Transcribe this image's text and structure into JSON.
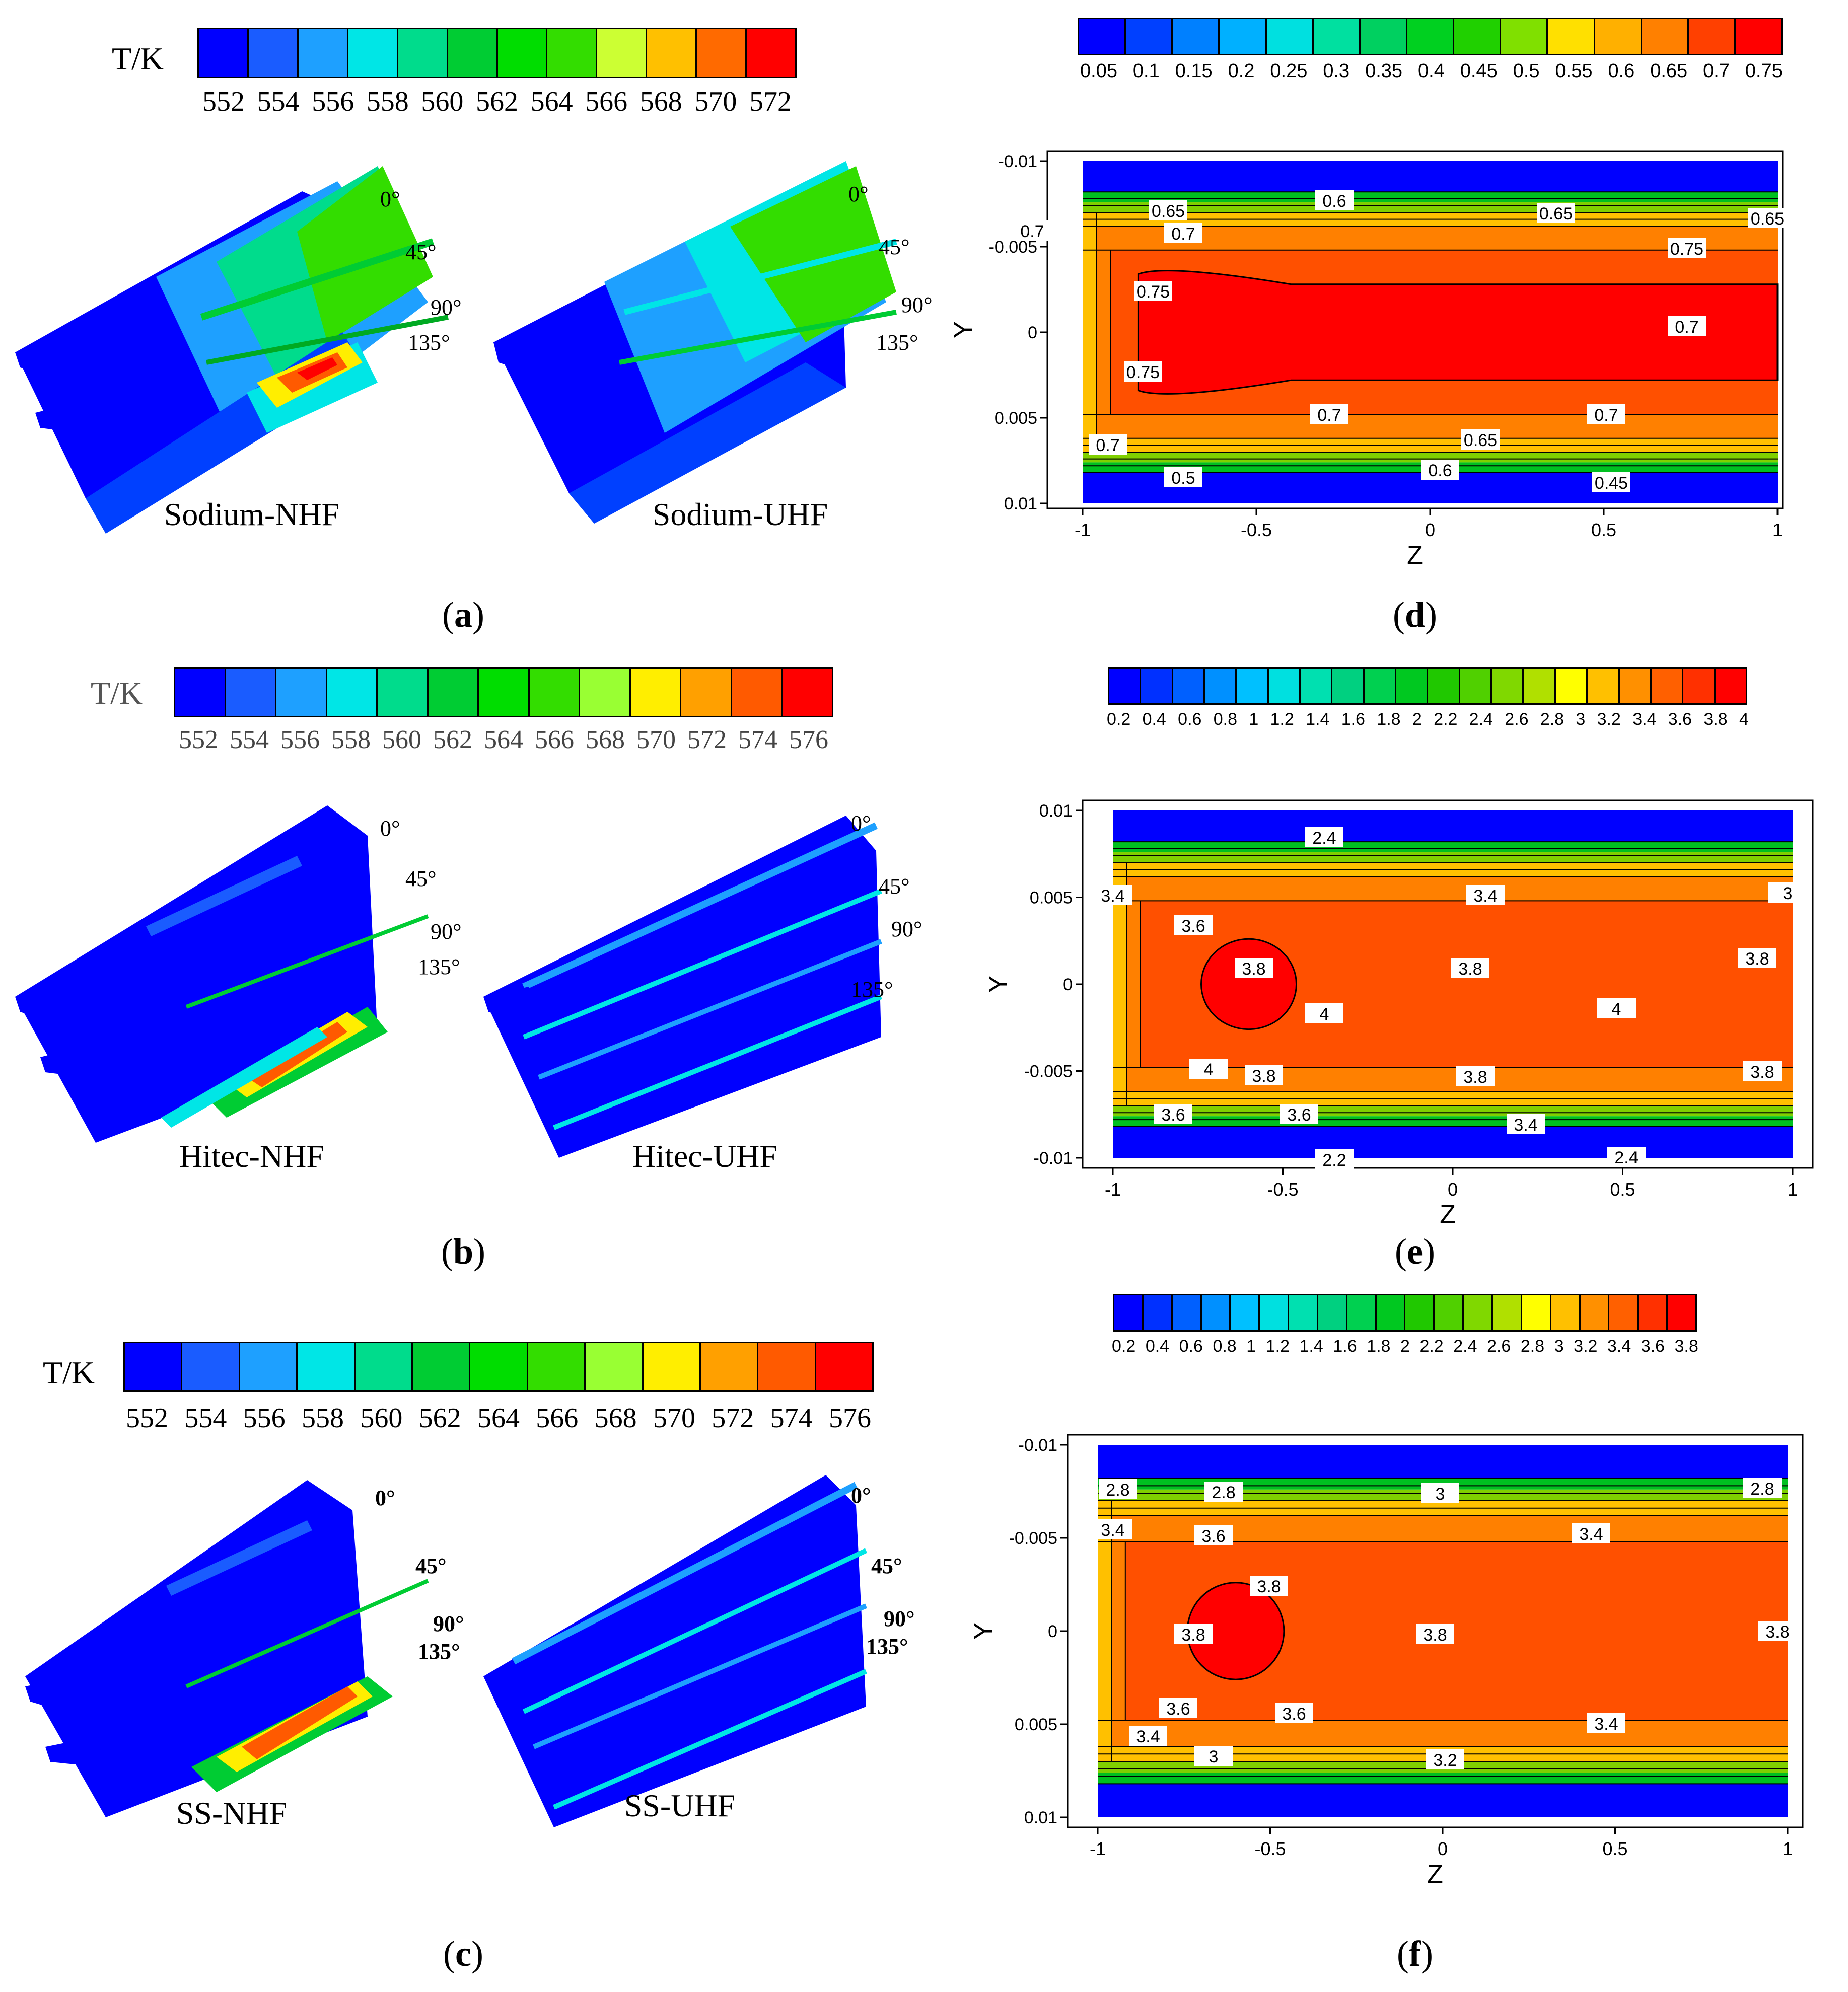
{
  "panels": {
    "a": {
      "label": "a",
      "unit": "T/K",
      "ticks": [
        "552",
        "554",
        "556",
        "558",
        "560",
        "562",
        "564",
        "566",
        "568",
        "570",
        "572"
      ],
      "colors": [
        "#0000ff",
        "#1a5cff",
        "#1ea0ff",
        "#00e6e6",
        "#00dc8c",
        "#00cc33",
        "#00dd00",
        "#33dd00",
        "#ccff33",
        "#ffc000",
        "#ff6a00",
        "#ff0000"
      ],
      "captions": [
        "Sodium-NHF",
        "Sodium-UHF"
      ],
      "angles": [
        "0°",
        "45°",
        "90°",
        "135°"
      ]
    },
    "b": {
      "label": "b",
      "unit": "T/K",
      "ticks": [
        "552",
        "554",
        "556",
        "558",
        "560",
        "562",
        "564",
        "566",
        "568",
        "570",
        "572",
        "574",
        "576"
      ],
      "colors": [
        "#0000ff",
        "#1a5cff",
        "#1ea0ff",
        "#00e6e6",
        "#00dc8c",
        "#00cc33",
        "#00dd00",
        "#33dd00",
        "#99ff33",
        "#ffee00",
        "#ffa000",
        "#ff5a00",
        "#ff0000"
      ],
      "captions": [
        "Hitec-NHF",
        "Hitec-UHF"
      ],
      "angles": [
        "0°",
        "45°",
        "90°",
        "135°"
      ]
    },
    "c": {
      "label": "c",
      "unit": "T/K",
      "ticks": [
        "552",
        "554",
        "556",
        "558",
        "560",
        "562",
        "564",
        "566",
        "568",
        "570",
        "572",
        "574",
        "576"
      ],
      "colors": [
        "#0000ff",
        "#1a5cff",
        "#1ea0ff",
        "#00e6e6",
        "#00dc8c",
        "#00cc33",
        "#00dd00",
        "#33dd00",
        "#99ff33",
        "#ffee00",
        "#ffa000",
        "#ff5a00",
        "#ff0000"
      ],
      "captions": [
        "SS-NHF",
        "SS-UHF"
      ],
      "angles": [
        "0°",
        "45°",
        "90°",
        "135°"
      ]
    },
    "d": {
      "label": "d",
      "ticks": [
        "0.05",
        "0.1",
        "0.15",
        "0.2",
        "0.25",
        "0.3",
        "0.35",
        "0.4",
        "0.45",
        "0.5",
        "0.55",
        "0.6",
        "0.65",
        "0.7",
        "0.75"
      ],
      "colors": [
        "#0000ff",
        "#0040ff",
        "#0080ff",
        "#00b0ff",
        "#00e0e0",
        "#00e0a0",
        "#00d060",
        "#00d020",
        "#20d000",
        "#80e000",
        "#ffe000",
        "#ffb000",
        "#ff8000",
        "#ff4000",
        "#ff0000"
      ],
      "chart_data": {
        "type": "heatmap",
        "xlabel": "Z",
        "ylabel": "Y",
        "xlim": [
          -1,
          1
        ],
        "ylim": [
          -0.01,
          0.01
        ],
        "y_inverted": true,
        "xticks": [
          "-1",
          "-0.5",
          "0",
          "0.5",
          "1"
        ],
        "yticks": [
          "-0.01",
          "-0.005",
          "0",
          "0.005",
          "0.01"
        ],
        "contour_labels": [
          "0.65",
          "0.6",
          "0.65",
          "0.65",
          "0.7",
          "0.7",
          "0.75",
          "0.75",
          "0.7",
          "0.75",
          "0.7",
          "0.7",
          "0.65",
          "0.7",
          "0.5",
          "0.6",
          "0.45"
        ]
      }
    },
    "e": {
      "label": "e",
      "ticks": [
        "0.2",
        "0.4",
        "0.6",
        "0.8",
        "1",
        "1.2",
        "1.4",
        "1.6",
        "1.8",
        "2",
        "2.2",
        "2.4",
        "2.6",
        "2.8",
        "3",
        "3.2",
        "3.4",
        "3.6",
        "3.8",
        "4"
      ],
      "colors": [
        "#0000ff",
        "#0030ff",
        "#0060ff",
        "#0090ff",
        "#00c0ff",
        "#00e0e0",
        "#00e0b0",
        "#00d080",
        "#00d050",
        "#00c820",
        "#20c800",
        "#50d000",
        "#80d800",
        "#b0e000",
        "#ffff00",
        "#ffc000",
        "#ff9000",
        "#ff6000",
        "#ff3000",
        "#ff0000"
      ],
      "chart_data": {
        "type": "heatmap",
        "xlabel": "Z",
        "ylabel": "Y",
        "xlim": [
          -1,
          1
        ],
        "ylim": [
          -0.01,
          0.01
        ],
        "y_inverted": false,
        "xticks": [
          "-1",
          "-0.5",
          "0",
          "0.5",
          "1"
        ],
        "yticks": [
          "0.01",
          "0.005",
          "0",
          "-0.005",
          "-0.01"
        ],
        "contour_labels": [
          "2.4",
          "3",
          "3.4",
          "3.4",
          "3.6",
          "3.8",
          "3.8",
          "3.8",
          "4",
          "4",
          "4",
          "3.8",
          "3.8",
          "3.8",
          "3.6",
          "3.6",
          "3.4",
          "2.2",
          "2.4"
        ]
      }
    },
    "f": {
      "label": "f",
      "ticks": [
        "0.2",
        "0.4",
        "0.6",
        "0.8",
        "1",
        "1.2",
        "1.4",
        "1.6",
        "1.8",
        "2",
        "2.2",
        "2.4",
        "2.6",
        "2.8",
        "3",
        "3.2",
        "3.4",
        "3.6",
        "3.8"
      ],
      "colors": [
        "#0000ff",
        "#0030ff",
        "#0060ff",
        "#0090ff",
        "#00c0ff",
        "#00e0e0",
        "#00e0b0",
        "#00d080",
        "#00d050",
        "#00c820",
        "#20c800",
        "#50d000",
        "#80d800",
        "#b0e000",
        "#ffff00",
        "#ffc000",
        "#ff9000",
        "#ff6000",
        "#ff3000",
        "#ff0000"
      ],
      "chart_data": {
        "type": "heatmap",
        "xlabel": "Z",
        "ylabel": "Y",
        "xlim": [
          -1,
          1
        ],
        "ylim": [
          -0.01,
          0.01
        ],
        "y_inverted": true,
        "xticks": [
          "-1",
          "-0.5",
          "0",
          "0.5",
          "1"
        ],
        "yticks": [
          "-0.01",
          "-0.005",
          "0",
          "0.005",
          "0.01"
        ],
        "contour_labels": [
          "2.8",
          "2.8",
          "3",
          "2.8",
          "3.4",
          "3.6",
          "3.4",
          "3.8",
          "3.8",
          "3.8",
          "3.8",
          "3.6",
          "3.6",
          "3.4",
          "3.4",
          "3",
          "3.2"
        ]
      }
    }
  }
}
